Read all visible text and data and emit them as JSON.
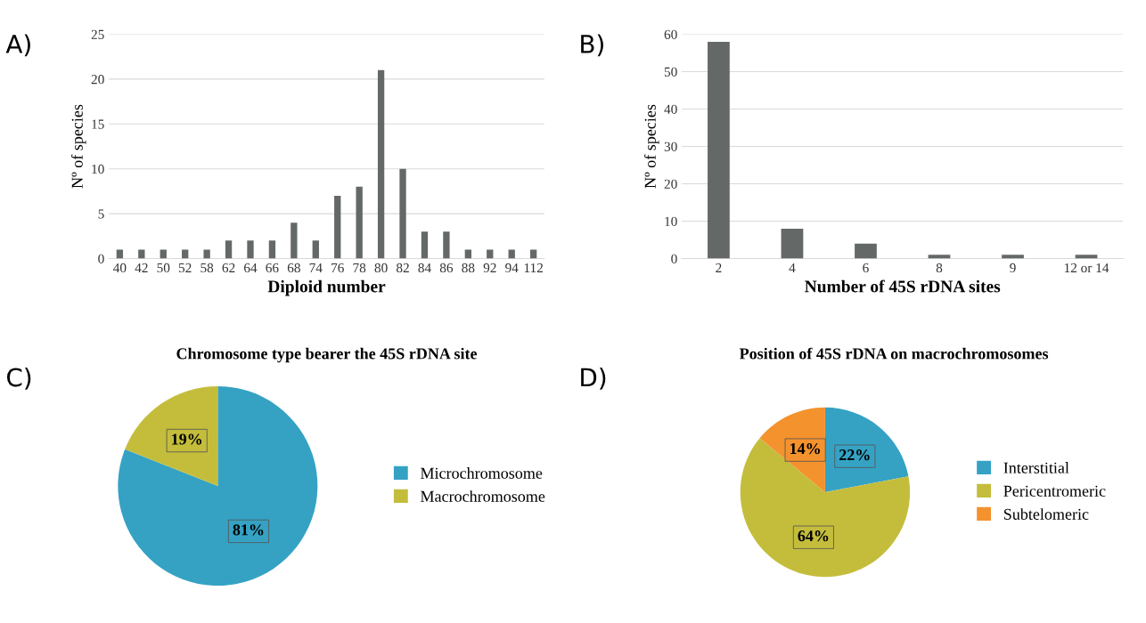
{
  "chart_data": [
    {
      "type": "bar",
      "annotations": [
        "A)"
      ],
      "xlabel": "Diploid number",
      "ylabel": "Nº of species",
      "categories": [
        "40",
        "42",
        "50",
        "52",
        "58",
        "62",
        "64",
        "66",
        "68",
        "74",
        "76",
        "78",
        "80",
        "82",
        "84",
        "86",
        "88",
        "92",
        "94",
        "112"
      ],
      "values": [
        1,
        1,
        1,
        1,
        1,
        2,
        2,
        2,
        4,
        2,
        7,
        8,
        21,
        10,
        3,
        3,
        1,
        1,
        1,
        1
      ],
      "color": "#646968",
      "ylim": [
        0,
        25
      ],
      "yticks": [
        0,
        5,
        10,
        15,
        20,
        25
      ],
      "grid": "y",
      "legend": false
    },
    {
      "type": "bar",
      "annotations": [
        "B)"
      ],
      "xlabel": "Number of 45S rDNA sites",
      "ylabel": "Nº of species",
      "categories": [
        "2",
        "4",
        "6",
        "8",
        "9",
        "12 or 14"
      ],
      "values": [
        58,
        8,
        4,
        1,
        1,
        1
      ],
      "color": "#646968",
      "ylim": [
        0,
        60
      ],
      "yticks": [
        0,
        10,
        20,
        30,
        40,
        50,
        60
      ],
      "grid": "y",
      "legend": false
    },
    {
      "type": "pie",
      "annotations": [
        "C)"
      ],
      "title": "Chromosome type bearer the 45S rDNA site",
      "categories": [
        "Microchromosome",
        "Macrochromosome"
      ],
      "values": [
        81,
        19
      ],
      "value_labels": [
        "81%",
        "19%"
      ],
      "colors": [
        "#35a2c4",
        "#c4bd3c"
      ],
      "legend": "right"
    },
    {
      "type": "pie",
      "annotations": [
        "D)"
      ],
      "title": "Position of 45S rDNA on macrochromosomes",
      "categories": [
        "Interstitial",
        "Pericentromeric",
        "Subtelomeric"
      ],
      "values": [
        22,
        64,
        14
      ],
      "value_labels": [
        "22%",
        "64%",
        "14%"
      ],
      "colors": [
        "#35a2c4",
        "#c4bd3c",
        "#f4922e"
      ],
      "legend": "right"
    }
  ]
}
